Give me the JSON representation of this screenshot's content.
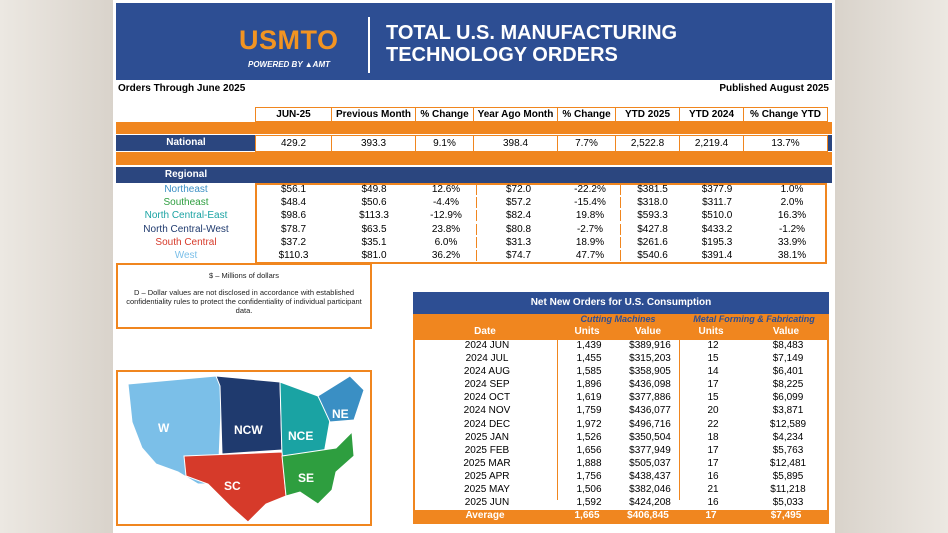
{
  "brand": {
    "logo": "USMTO",
    "powered_by": "POWERED BY ▲AMT"
  },
  "title": "TOTAL U.S. MANUFACTURING TECHNOLOGY ORDERS",
  "orders_through": "Orders Through June 2025",
  "published": "Published August 2025",
  "columns": [
    "JUN-25",
    "Previous Month",
    "% Change",
    "Year Ago Month",
    "% Change",
    "YTD 2025",
    "YTD 2024",
    "% Change YTD"
  ],
  "national": {
    "label": "National",
    "values": [
      "429.2",
      "393.3",
      "9.1%",
      "398.4",
      "7.7%",
      "2,522.8",
      "2,219.4",
      "13.7%"
    ]
  },
  "regional_label": "Regional",
  "regions": [
    {
      "name": "Northeast",
      "color": "#3a8fc4",
      "values": [
        "$56.1",
        "$49.8",
        "12.6%",
        "$72.0",
        "-22.2%",
        "$381.5",
        "$377.9",
        "1.0%"
      ]
    },
    {
      "name": "Southeast",
      "color": "#2e9e3f",
      "values": [
        "$48.4",
        "$50.6",
        "-4.4%",
        "$57.2",
        "-15.4%",
        "$318.0",
        "$311.7",
        "2.0%"
      ]
    },
    {
      "name": "North Central-East",
      "color": "#1aa3a3",
      "values": [
        "$98.6",
        "$113.3",
        "-12.9%",
        "$82.4",
        "19.8%",
        "$593.3",
        "$510.0",
        "16.3%"
      ]
    },
    {
      "name": "North Central-West",
      "color": "#1f3a6e",
      "values": [
        "$78.7",
        "$63.5",
        "23.8%",
        "$80.8",
        "-2.7%",
        "$427.8",
        "$433.2",
        "-1.2%"
      ]
    },
    {
      "name": "South Central",
      "color": "#d63a2a",
      "values": [
        "$37.2",
        "$35.1",
        "6.0%",
        "$31.3",
        "18.9%",
        "$261.6",
        "$195.3",
        "33.9%"
      ]
    },
    {
      "name": "West",
      "color": "#7bbfe8",
      "values": [
        "$110.3",
        "$81.0",
        "36.2%",
        "$74.7",
        "47.7%",
        "$540.6",
        "$391.4",
        "38.1%"
      ]
    }
  ],
  "note": {
    "units": "$ – Millions of dollars",
    "disclaimer": "D – Dollar values are not disclosed in accordance with established confidentiality rules to protect the confidentiality of individual participant data."
  },
  "map_labels": [
    "W",
    "NCW",
    "NCE",
    "NE",
    "SC",
    "SE"
  ],
  "nno": {
    "title": "Net New Orders for U.S. Consumption",
    "group1": "Cutting Machines",
    "group2": "Metal Forming & Fabricating",
    "headers": [
      "Date",
      "Units",
      "Value",
      "Units",
      "Value"
    ],
    "rows": [
      [
        "2024  JUN",
        "1,439",
        "$389,916",
        "12",
        "$8,483"
      ],
      [
        "2024  JUL",
        "1,455",
        "$315,203",
        "15",
        "$7,149"
      ],
      [
        "2024  AUG",
        "1,585",
        "$358,905",
        "14",
        "$6,401"
      ],
      [
        "2024  SEP",
        "1,896",
        "$436,098",
        "17",
        "$8,225"
      ],
      [
        "2024  OCT",
        "1,619",
        "$377,886",
        "15",
        "$6,099"
      ],
      [
        "2024  NOV",
        "1,759",
        "$436,077",
        "20",
        "$3,871"
      ],
      [
        "2024  DEC",
        "1,972",
        "$496,716",
        "22",
        "$12,589"
      ],
      [
        "2025  JAN",
        "1,526",
        "$350,504",
        "18",
        "$4,234"
      ],
      [
        "2025  FEB",
        "1,656",
        "$377,949",
        "17",
        "$5,763"
      ],
      [
        "2025  MAR",
        "1,888",
        "$505,037",
        "17",
        "$12,481"
      ],
      [
        "2025  APR",
        "1,756",
        "$438,437",
        "16",
        "$5,895"
      ],
      [
        "2025  MAY",
        "1,506",
        "$382,046",
        "21",
        "$11,218"
      ],
      [
        "2025  JUN",
        "1,592",
        "$424,208",
        "16",
        "$5,033"
      ]
    ],
    "average": [
      "Average",
      "1,665",
      "$406,845",
      "17",
      "$7,495"
    ]
  }
}
